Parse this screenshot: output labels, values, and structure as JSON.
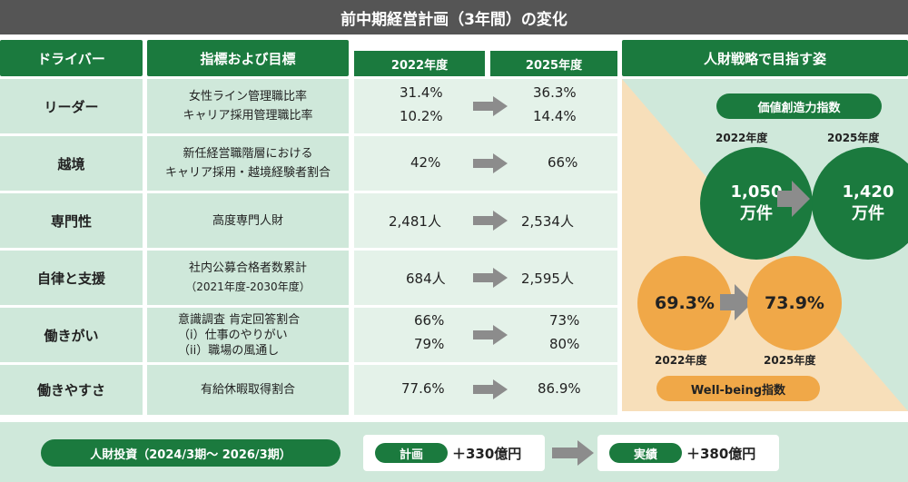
{
  "title": "前中期経営計画（3年間）の変化",
  "headers": {
    "driver": "ドライバー",
    "metric": "指標および目標",
    "year_start": "2022年度",
    "year_end": "2025年度",
    "strategy": "人財戦略で目指す姿"
  },
  "rows": [
    {
      "driver": "リーダー",
      "metric_lines": [
        "女性ライン管理職比率",
        "キャリア採用管理職比率"
      ],
      "start": [
        "31.4%",
        "10.2%"
      ],
      "end": [
        "36.3%",
        "14.4%"
      ]
    },
    {
      "driver": "越境",
      "metric_lines": [
        "新任経営職階層における",
        "キャリア採用・越境経験者割合"
      ],
      "start": [
        "42%"
      ],
      "end": [
        "66%"
      ]
    },
    {
      "driver": "専門性",
      "metric_lines": [
        "高度専門人財"
      ],
      "start": [
        "2,481人"
      ],
      "end": [
        "2,534人"
      ]
    },
    {
      "driver": "自律と支援",
      "metric_lines": [
        "社内公募合格者数累計",
        "（2021年度-2030年度）"
      ],
      "start": [
        "684人"
      ],
      "end": [
        "2,595人"
      ]
    },
    {
      "driver": "働きがい",
      "metric_lines": [
        "意識調査 肯定回答割合",
        "（i）仕事のやりがい",
        "（ii）職場の風通し"
      ],
      "start": [
        "66%",
        "79%"
      ],
      "end": [
        "73%",
        "80%"
      ]
    },
    {
      "driver": "働きやすさ",
      "metric_lines": [
        "有給休暇取得割合"
      ],
      "start": [
        "77.6%"
      ],
      "end": [
        "86.9%"
      ]
    }
  ],
  "value_index": {
    "label": "価値創造力指数",
    "year_start": "2022年度",
    "year_end": "2025年度",
    "start_value": "1,050",
    "end_value": "1,420",
    "unit": "万件"
  },
  "wellbeing": {
    "label": "Well-being指数",
    "year_start": "2022年度",
    "year_end": "2025年度",
    "start_value": "69.3%",
    "end_value": "73.9%"
  },
  "investment": {
    "label": "人財投資（2024/3期～ 2026/3期）",
    "plan_label": "計画",
    "plan_value": "＋330億円",
    "actual_label": "実績",
    "actual_value": "＋380億円"
  },
  "colors": {
    "dark_green": "#1b7a3e",
    "light_green": "#cfe8da",
    "orange": "#f0a848",
    "peach": "#f7dfba",
    "gray_arrow": "#8c8c8c",
    "title_gray": "#555555"
  },
  "icons": [
    "right-arrow-icon"
  ]
}
